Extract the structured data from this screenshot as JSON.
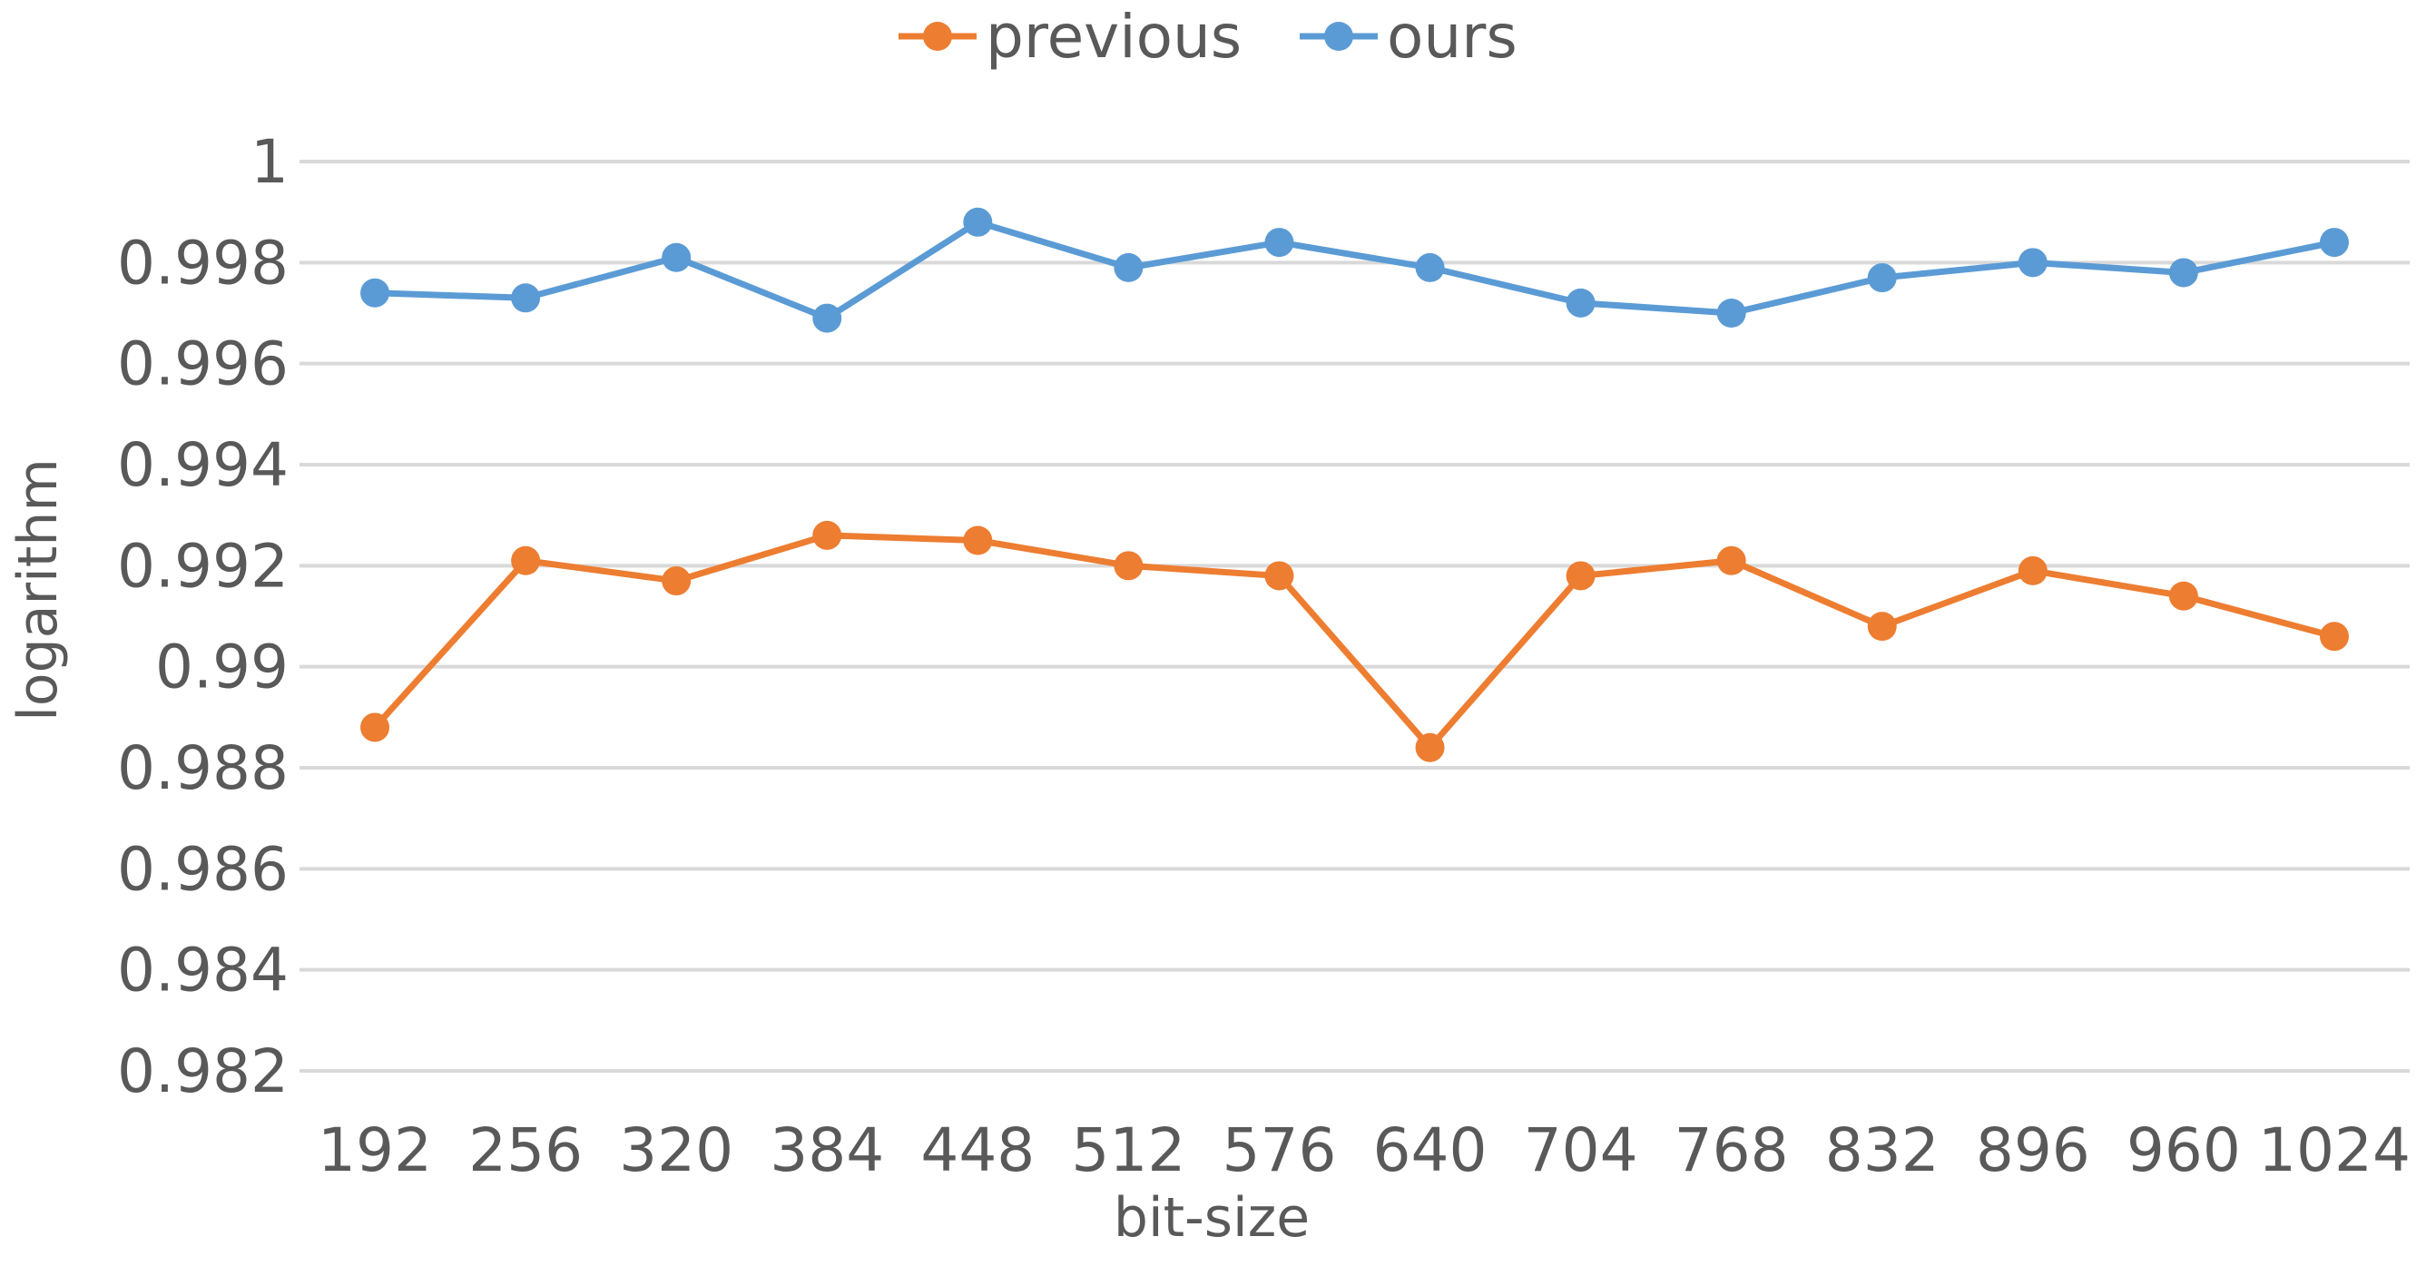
{
  "chart_data": {
    "type": "line",
    "title": "",
    "xlabel": "bit-size",
    "ylabel": "logarithm",
    "categories": [
      "192",
      "256",
      "320",
      "384",
      "448",
      "512",
      "576",
      "640",
      "704",
      "768",
      "832",
      "896",
      "960",
      "1024"
    ],
    "ylim": [
      0.982,
      1.0
    ],
    "yticks": [
      0.982,
      0.984,
      0.986,
      0.988,
      0.99,
      0.992,
      0.994,
      0.996,
      0.998,
      1
    ],
    "ytick_labels": [
      "0.982",
      "0.984",
      "0.986",
      "0.988",
      "0.99",
      "0.992",
      "0.994",
      "0.996",
      "0.998",
      "1"
    ],
    "grid": true,
    "legend_position": "top",
    "series": [
      {
        "name": "previous",
        "color": "#ED7D31",
        "values": [
          0.9888,
          0.9921,
          0.9917,
          0.9926,
          0.9925,
          0.992,
          0.9918,
          0.9884,
          0.9918,
          0.9921,
          0.9908,
          0.9919,
          0.9914,
          0.9906
        ]
      },
      {
        "name": "ours",
        "color": "#5B9BD5",
        "values": [
          0.9974,
          0.9973,
          0.9981,
          0.9969,
          0.9988,
          0.9979,
          0.9984,
          0.9979,
          0.9972,
          0.997,
          0.9977,
          0.998,
          0.9978,
          0.9984
        ]
      }
    ]
  }
}
